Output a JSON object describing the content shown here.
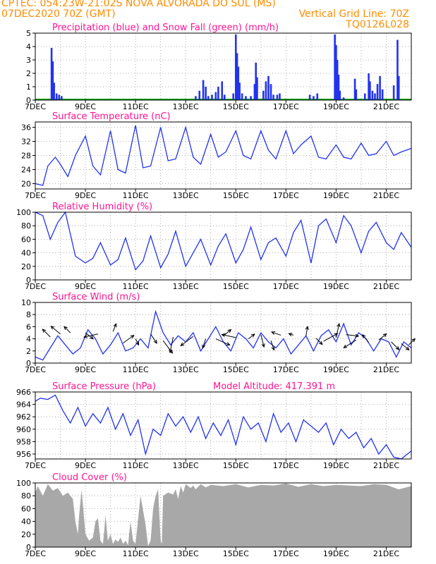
{
  "header": {
    "line1": "CPTEC:   054:23W-21:02S   NOVA ALVORADA DO SUL (MS)",
    "line2_left": "07DEC2020 70Z (GMT)",
    "line2_right": "Vertical Grid Line: 70Z",
    "line3_right": "TQ0126L028"
  },
  "x_axis": {
    "days_total": 15,
    "tick_labels": [
      "7DEC",
      "9DEC",
      "11DEC",
      "13DEC",
      "15DEC",
      "17DEC",
      "19DEC",
      "21DEC"
    ],
    "tick_days": [
      0,
      2,
      4,
      6,
      8,
      10,
      12,
      14
    ]
  },
  "colors": {
    "line": "#2233ee",
    "precip": "#2233ee",
    "snow": "#00aa00",
    "cloud": "#a8a8a8",
    "arrow": "#000000",
    "title": "#ff1493",
    "header": "#ff8c00"
  },
  "chart_data": [
    {
      "id": "precip",
      "type": "bar",
      "title": "Precipitation (blue) and Snow Fall (green) (mm/h)",
      "ylim": [
        0,
        5
      ],
      "yticks": [
        0,
        1,
        2,
        3,
        4,
        5
      ],
      "series": [
        {
          "name": "Precipitation",
          "values": [
            [
              0.65,
              3.9
            ],
            [
              0.7,
              2.9
            ],
            [
              0.75,
              1.3
            ],
            [
              0.85,
              0.5
            ],
            [
              0.95,
              0.4
            ],
            [
              1.05,
              0.3
            ],
            [
              6.4,
              0.3
            ],
            [
              6.55,
              0.7
            ],
            [
              6.7,
              1.5
            ],
            [
              6.8,
              1.0
            ],
            [
              6.9,
              0.3
            ],
            [
              7.05,
              0.4
            ],
            [
              7.2,
              0.6
            ],
            [
              7.3,
              1.0
            ],
            [
              7.45,
              1.4
            ],
            [
              7.55,
              0.4
            ],
            [
              7.9,
              0.5
            ],
            [
              8.0,
              4.9
            ],
            [
              8.05,
              3.5
            ],
            [
              8.1,
              2.5
            ],
            [
              8.15,
              1.3
            ],
            [
              8.25,
              0.5
            ],
            [
              8.4,
              0.3
            ],
            [
              8.6,
              0.3
            ],
            [
              8.75,
              1.2
            ],
            [
              8.8,
              2.8
            ],
            [
              8.85,
              1.7
            ],
            [
              9.1,
              0.7
            ],
            [
              9.2,
              1.4
            ],
            [
              9.3,
              1.8
            ],
            [
              9.4,
              1.2
            ],
            [
              9.5,
              0.4
            ],
            [
              9.65,
              0.4
            ],
            [
              9.75,
              0.5
            ],
            [
              10.95,
              0.4
            ],
            [
              11.1,
              0.3
            ],
            [
              11.25,
              0.5
            ],
            [
              11.95,
              4.9
            ],
            [
              12.0,
              4.1
            ],
            [
              12.05,
              3.0
            ],
            [
              12.1,
              1.9
            ],
            [
              12.15,
              0.7
            ],
            [
              12.3,
              0.2
            ],
            [
              12.75,
              1.6
            ],
            [
              12.8,
              0.8
            ],
            [
              13.15,
              0.5
            ],
            [
              13.3,
              2.0
            ],
            [
              13.35,
              1.4
            ],
            [
              13.45,
              0.7
            ],
            [
              13.55,
              0.5
            ],
            [
              13.65,
              1.2
            ],
            [
              13.75,
              1.8
            ],
            [
              13.85,
              0.8
            ],
            [
              14.3,
              1.1
            ],
            [
              14.45,
              4.5
            ],
            [
              14.5,
              1.8
            ]
          ]
        },
        {
          "name": "Snow Fall",
          "values": []
        }
      ]
    },
    {
      "id": "temp",
      "type": "line",
      "title": "Surface Temperature (nC)",
      "ylim": [
        18.5,
        37.5
      ],
      "yticks": [
        20,
        24,
        28,
        32,
        36
      ],
      "x": [
        0,
        0.3,
        0.5,
        0.8,
        1.0,
        1.3,
        1.6,
        2.0,
        2.3,
        2.6,
        3.0,
        3.3,
        3.6,
        4.0,
        4.3,
        4.6,
        5.0,
        5.3,
        5.6,
        6.0,
        6.3,
        6.6,
        7.0,
        7.3,
        7.6,
        8.0,
        8.3,
        8.6,
        9.0,
        9.3,
        9.6,
        10.0,
        10.3,
        10.6,
        11.0,
        11.3,
        11.6,
        12.0,
        12.3,
        12.6,
        13.0,
        13.3,
        13.6,
        14.0,
        14.3,
        14.6,
        15.0
      ],
      "y": [
        20,
        19.5,
        25,
        27.5,
        25.5,
        22,
        28,
        33.5,
        25,
        22.5,
        35,
        24,
        23,
        36.5,
        24.5,
        25,
        36,
        26.5,
        27,
        36,
        27.5,
        25.5,
        34,
        27.5,
        29,
        35,
        28,
        27,
        35,
        29.5,
        27,
        35,
        28.5,
        31,
        33.5,
        27.5,
        27,
        31,
        27.5,
        27,
        31.5,
        28,
        28.5,
        32,
        28,
        29,
        30
      ]
    },
    {
      "id": "rh",
      "type": "line",
      "title": "Relative Humidity (%)",
      "ylim": [
        0,
        100
      ],
      "yticks": [
        0,
        20,
        40,
        60,
        80,
        100
      ],
      "x": [
        0,
        0.3,
        0.6,
        0.9,
        1.2,
        1.6,
        2.0,
        2.3,
        2.6,
        3.0,
        3.3,
        3.6,
        4.0,
        4.3,
        4.6,
        5.0,
        5.3,
        5.6,
        6.0,
        6.3,
        6.6,
        7.0,
        7.3,
        7.6,
        8.0,
        8.3,
        8.6,
        9.0,
        9.3,
        9.6,
        10.0,
        10.3,
        10.6,
        11.0,
        11.3,
        11.6,
        12.0,
        12.3,
        12.6,
        13.0,
        13.3,
        13.6,
        14.0,
        14.3,
        14.6,
        15.0
      ],
      "y": [
        100,
        95,
        60,
        85,
        100,
        35,
        25,
        32,
        55,
        22,
        30,
        62,
        15,
        28,
        65,
        18,
        38,
        72,
        20,
        40,
        60,
        22,
        50,
        68,
        25,
        45,
        78,
        30,
        55,
        62,
        35,
        70,
        88,
        25,
        80,
        90,
        55,
        95,
        80,
        40,
        72,
        85,
        55,
        45,
        70,
        48
      ]
    },
    {
      "id": "wind",
      "type": "line",
      "title": "Surface Wind (m/s)",
      "ylim": [
        0,
        10
      ],
      "yticks": [
        0,
        2,
        4,
        6,
        8,
        10
      ],
      "x": [
        0,
        0.3,
        0.6,
        0.9,
        1.2,
        1.5,
        1.8,
        2.1,
        2.4,
        2.7,
        3.0,
        3.3,
        3.6,
        3.9,
        4.2,
        4.5,
        4.8,
        5.1,
        5.4,
        5.7,
        6.0,
        6.3,
        6.6,
        6.9,
        7.2,
        7.5,
        7.8,
        8.1,
        8.4,
        8.7,
        9.0,
        9.3,
        9.6,
        9.9,
        10.2,
        10.5,
        10.8,
        11.1,
        11.4,
        11.7,
        12.0,
        12.3,
        12.6,
        12.9,
        13.2,
        13.5,
        13.8,
        14.1,
        14.4,
        14.7,
        15.0
      ],
      "y": [
        1,
        0.5,
        2.5,
        4.5,
        3,
        1.5,
        2.5,
        5.5,
        4,
        1.5,
        3,
        5,
        2,
        2.5,
        4,
        2.5,
        8.5,
        5,
        3,
        4.5,
        3.5,
        5,
        2,
        4,
        6,
        3.5,
        2,
        5,
        4,
        2.5,
        5,
        3.5,
        2.5,
        4,
        1.5,
        3,
        4.5,
        2,
        4.5,
        5.5,
        3.5,
        6.5,
        3,
        5,
        4,
        2,
        4,
        3.5,
        1,
        3.5,
        2.5
      ],
      "vectors": [
        [
          0.6,
          4.3,
          -0.5,
          0.5
        ],
        [
          1.0,
          4.8,
          -0.6,
          0.5
        ],
        [
          1.4,
          5.0,
          -0.4,
          0.4
        ],
        [
          2.0,
          5.0,
          0.5,
          -0.4
        ],
        [
          2.5,
          4.8,
          -0.9,
          -0.2
        ],
        [
          3.1,
          5.2,
          0.2,
          0.5
        ],
        [
          3.5,
          3.3,
          0.7,
          0.5
        ],
        [
          4.0,
          4.0,
          0.2,
          -0.4
        ],
        [
          4.6,
          4.8,
          0.4,
          -0.6
        ],
        [
          5.1,
          3.7,
          0.6,
          -0.8
        ],
        [
          5.5,
          4.3,
          -0.2,
          -1.0
        ],
        [
          6.3,
          4.4,
          -0.8,
          -0.6
        ],
        [
          6.8,
          4.0,
          -0.2,
          -0.6
        ],
        [
          7.2,
          4.0,
          0.9,
          -0.4
        ],
        [
          7.5,
          4.5,
          0.5,
          0.4
        ],
        [
          8.0,
          4.2,
          -0.9,
          0.2
        ],
        [
          8.5,
          4.0,
          0.4,
          0.3
        ],
        [
          9.0,
          4.7,
          0.2,
          -0.8
        ],
        [
          9.4,
          3.7,
          0.2,
          -0.6
        ],
        [
          9.8,
          4.6,
          -0.6,
          0.2
        ],
        [
          10.3,
          4.6,
          -0.3,
          0.1
        ],
        [
          10.8,
          4.5,
          0.1,
          0.6
        ],
        [
          11.2,
          4.1,
          0.4,
          -0.4
        ],
        [
          11.5,
          3.6,
          0.9,
          0.5
        ],
        [
          12.0,
          4.2,
          0.2,
          0.9
        ],
        [
          12.4,
          4.7,
          0.8,
          -0.1
        ],
        [
          12.8,
          3.8,
          -0.8,
          -0.5
        ],
        [
          13.3,
          3.4,
          -0.4,
          0.5
        ],
        [
          13.7,
          3.8,
          0.5,
          0.4
        ],
        [
          14.2,
          3.5,
          0.5,
          -0.5
        ],
        [
          14.6,
          3.2,
          0.5,
          -0.4
        ],
        [
          14.9,
          3.0,
          0.4,
          0.4
        ]
      ]
    },
    {
      "id": "pres",
      "type": "line",
      "title": "Surface Pressure (hPa)",
      "extra_label": "Model Altitude: 417.391  m",
      "ylim": [
        955.2,
        966
      ],
      "yticks": [
        956,
        958,
        960,
        962,
        964,
        966
      ],
      "x": [
        0,
        0.2,
        0.5,
        0.8,
        1.1,
        1.4,
        1.7,
        2.0,
        2.3,
        2.6,
        2.9,
        3.2,
        3.5,
        3.8,
        4.1,
        4.4,
        4.7,
        5.0,
        5.3,
        5.6,
        5.9,
        6.2,
        6.5,
        6.8,
        7.1,
        7.4,
        7.7,
        8.0,
        8.3,
        8.6,
        8.9,
        9.2,
        9.5,
        9.8,
        10.1,
        10.4,
        10.7,
        11.0,
        11.3,
        11.6,
        11.9,
        12.2,
        12.5,
        12.8,
        13.1,
        13.4,
        13.7,
        14.0,
        14.3,
        14.6,
        15.0
      ],
      "y": [
        964.5,
        965,
        964.8,
        965.5,
        963,
        961,
        963.5,
        960.5,
        962.5,
        961,
        963.5,
        960,
        962.5,
        959,
        961.5,
        956,
        960,
        959,
        962.5,
        960.5,
        962,
        959.5,
        962,
        958.5,
        961,
        959,
        961.5,
        957.5,
        962,
        960,
        961,
        958,
        962.5,
        959.5,
        961,
        958,
        961.5,
        960.5,
        959.5,
        961,
        957.5,
        960,
        958.5,
        959.5,
        957,
        958.5,
        956,
        957.5,
        955.5,
        955.2,
        956.5
      ]
    },
    {
      "id": "cloud",
      "type": "area",
      "title": "Cloud Cover (%)",
      "ylim": [
        0,
        100
      ],
      "yticks": [
        0,
        20,
        40,
        60,
        80,
        100
      ],
      "x": [
        0,
        0.1,
        0.3,
        0.5,
        0.7,
        0.9,
        1.1,
        1.3,
        1.5,
        1.6,
        1.7,
        1.75,
        1.85,
        2.0,
        2.15,
        2.3,
        2.4,
        2.5,
        2.6,
        2.7,
        2.75,
        2.8,
        2.9,
        3.0,
        3.1,
        3.2,
        3.3,
        3.4,
        3.5,
        3.6,
        3.7,
        3.8,
        3.9,
        4.0,
        4.2,
        4.4,
        4.5,
        4.6,
        4.7,
        4.8,
        4.9,
        5.0,
        5.05,
        5.1,
        5.3,
        5.5,
        5.6,
        5.7,
        5.8,
        5.9,
        6.0,
        6.2,
        6.3,
        6.4,
        6.6,
        6.8,
        7.0,
        7.5,
        8.0,
        8.5,
        9.0,
        9.5,
        10.0,
        10.5,
        11.0,
        11.5,
        12.0,
        12.5,
        13.0,
        13.5,
        14.0,
        14.5,
        15.0
      ],
      "y": [
        85,
        95,
        80,
        98,
        88,
        92,
        80,
        85,
        75,
        40,
        20,
        50,
        90,
        20,
        10,
        15,
        40,
        45,
        10,
        5,
        25,
        50,
        10,
        20,
        5,
        12,
        8,
        15,
        5,
        10,
        3,
        40,
        10,
        5,
        80,
        35,
        2,
        10,
        60,
        80,
        90,
        10,
        5,
        80,
        85,
        82,
        90,
        75,
        95,
        85,
        98,
        92,
        96,
        90,
        98,
        93,
        97,
        95,
        98,
        93,
        97,
        96,
        99,
        94,
        98,
        95,
        97,
        96,
        95,
        98,
        97,
        90,
        95
      ]
    }
  ]
}
